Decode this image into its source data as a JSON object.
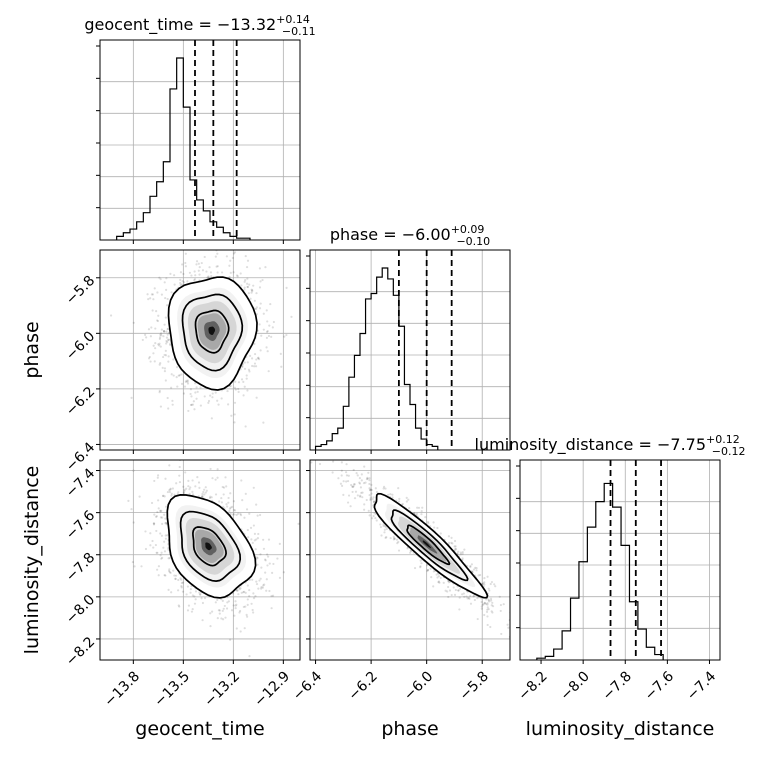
{
  "chart_data": {
    "type": "corner",
    "grid": true,
    "parameters": [
      {
        "name": "geocent_time",
        "range": [
          -14.0,
          -12.8
        ],
        "ticks": [
          -13.8,
          -13.5,
          -13.2,
          -12.9
        ],
        "tick_labels": [
          "−13.8",
          "−13.5",
          "−13.2",
          "−12.9"
        ],
        "quantiles": [
          -13.43,
          -13.32,
          -13.18
        ]
      },
      {
        "name": "phase",
        "range": [
          -6.42,
          -5.7
        ],
        "ticks": [
          -6.4,
          -6.2,
          -6.0,
          -5.8
        ],
        "tick_labels": [
          "−6.4",
          "−6.2",
          "−6.0",
          "−5.8"
        ],
        "quantiles": [
          -6.1,
          -6.0,
          -5.91
        ]
      },
      {
        "name": "luminosity_distance",
        "range": [
          -8.3,
          -7.35
        ],
        "ticks": [
          -8.2,
          -8.0,
          -7.8,
          -7.6,
          -7.4
        ],
        "tick_labels": [
          "−8.2",
          "−8.0",
          "−7.8",
          "−7.6",
          "−7.4"
        ],
        "quantiles": [
          -7.87,
          -7.75,
          -7.63
        ]
      }
    ],
    "titles": [
      {
        "prefix": "geocent_time = −13.32",
        "sup": "+0.14",
        "sub": "−0.11"
      },
      {
        "prefix": "phase = −6.00",
        "sup": "+0.09",
        "sub": "−0.10"
      },
      {
        "prefix": "luminosity_distance = −7.75",
        "sup": "+0.12",
        "sub": "−0.12"
      }
    ],
    "axis_labels": {
      "x": [
        "geocent_time",
        "phase",
        "luminosity_distance"
      ],
      "y": [
        "phase",
        "luminosity_distance"
      ]
    },
    "histograms": [
      {
        "param": "geocent_time",
        "bins_from": -13.9,
        "bin_width": 0.04,
        "counts": [
          0.02,
          0.04,
          0.06,
          0.1,
          0.15,
          0.24,
          0.32,
          0.43,
          0.83,
          1.0,
          0.73,
          0.33,
          0.22,
          0.16,
          0.1,
          0.07,
          0.04,
          0.02,
          0.01,
          0.01
        ]
      },
      {
        "param": "phase",
        "bins_from": -6.4,
        "bin_width": 0.02,
        "counts": [
          0.02,
          0.03,
          0.05,
          0.09,
          0.12,
          0.24,
          0.4,
          0.52,
          0.64,
          0.83,
          0.86,
          0.95,
          1.0,
          0.94,
          0.85,
          0.68,
          0.36,
          0.25,
          0.12,
          0.06,
          0.03,
          0.02
        ]
      },
      {
        "param": "luminosity_distance",
        "bins_from": -8.22,
        "bin_width": 0.04,
        "counts": [
          0.01,
          0.02,
          0.06,
          0.16,
          0.34,
          0.54,
          0.73,
          0.87,
          0.97,
          0.84,
          0.63,
          0.32,
          0.17,
          0.07,
          0.03
        ]
      }
    ],
    "joint": [
      {
        "x": "geocent_time",
        "y": "phase",
        "center": [
          -13.33,
          -5.99
        ],
        "sigma": [
          0.13,
          0.1
        ],
        "rho": 0.0
      },
      {
        "x": "geocent_time",
        "y": "luminosity_distance",
        "center": [
          -13.35,
          -7.76
        ],
        "sigma": [
          0.13,
          0.12
        ],
        "rho": -0.35
      },
      {
        "x": "phase",
        "y": "luminosity_distance",
        "center": [
          -6.0,
          -7.75
        ],
        "sigma": [
          0.1,
          0.12
        ],
        "rho": -0.93
      }
    ]
  }
}
